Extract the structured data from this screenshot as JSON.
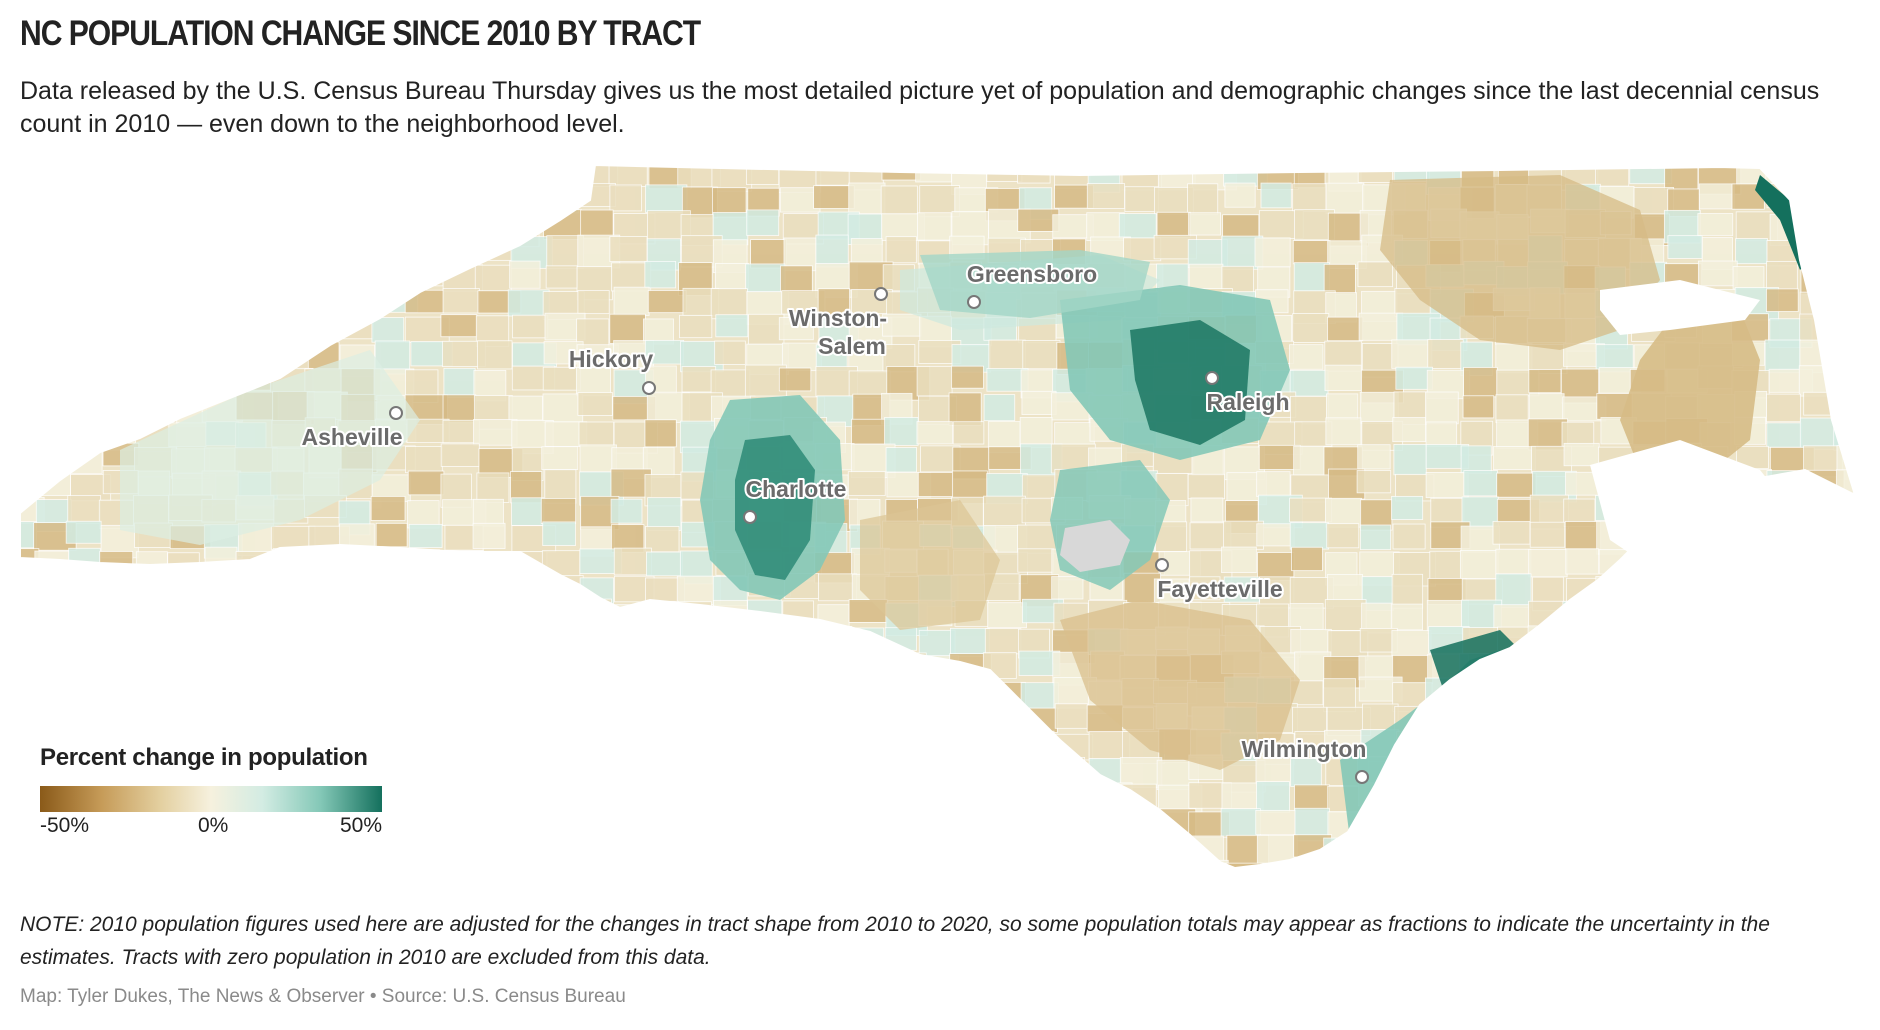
{
  "header": {
    "title": "NC POPULATION CHANGE SINCE 2010 BY TRACT",
    "subtitle": "Data released by the U.S. Census Bureau Thursday gives us the most detailed picture yet of population and demographic changes since the last decennial census count in 2010 — even down to the neighborhood level."
  },
  "map": {
    "cities": [
      {
        "name_lines": [
          "Greensboro"
        ],
        "name": "Greensboro"
      },
      {
        "name_lines": [
          "Winston-",
          "Salem"
        ],
        "name": "Winston-Salem"
      },
      {
        "name_lines": [
          "Hickory"
        ],
        "name": "Hickory"
      },
      {
        "name_lines": [
          "Asheville"
        ],
        "name": "Asheville"
      },
      {
        "name_lines": [
          "Charlotte"
        ],
        "name": "Charlotte"
      },
      {
        "name_lines": [
          "Raleigh"
        ],
        "name": "Raleigh"
      },
      {
        "name_lines": [
          "Fayetteville"
        ],
        "name": "Fayetteville"
      },
      {
        "name_lines": [
          "Wilmington"
        ],
        "name": "Wilmington"
      }
    ],
    "colors": {
      "strong_decline": "#8a5a19",
      "decline": "#d6bb86",
      "slight_decline": "#eadfbf",
      "neutral": "#f4f0dc",
      "slight_growth": "#d3ece3",
      "growth": "#84c8b7",
      "strong_growth": "#14705d",
      "no_data": "#d8d8d8"
    }
  },
  "legend": {
    "title": "Percent change in population",
    "min_label": "-50%",
    "mid_label": "0%",
    "max_label": "50%"
  },
  "footer": {
    "note": "NOTE: 2010 population figures used here are adjusted for the changes in tract shape from 2010 to 2020, so some population totals may appear as fractions to indicate the uncertainty in the estimates. Tracts with zero population in 2010 are excluded from this data.",
    "credit": "Map: Tyler Dukes, The News & Observer • Source: U.S. Census Bureau"
  }
}
